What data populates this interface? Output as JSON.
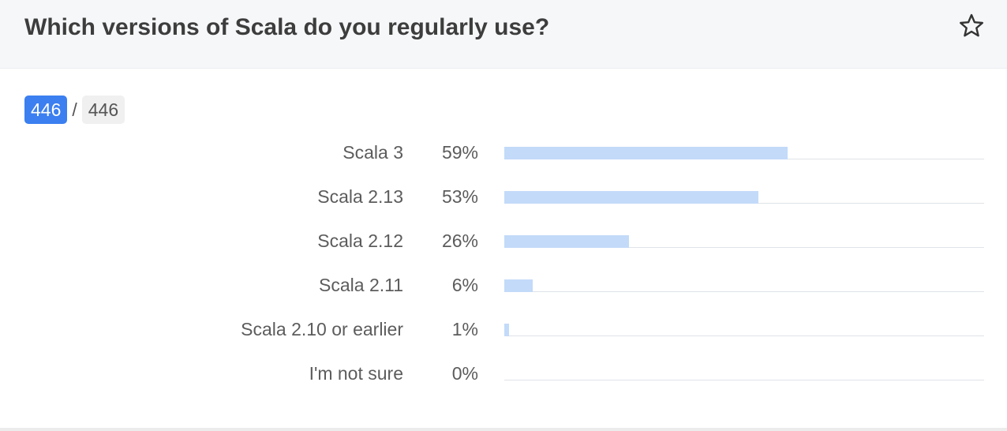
{
  "question": {
    "title": "Which versions of Scala do you regularly use?"
  },
  "icons": {
    "favorite": "star-outline-icon"
  },
  "responses": {
    "answered": "446",
    "separator": "/",
    "total": "446"
  },
  "colors": {
    "accent": "#3b7ff0",
    "bar": "#c3daf9",
    "track": "#dfe3e8",
    "header_bg": "#f6f7f9"
  },
  "chart_data": {
    "type": "bar",
    "orientation": "horizontal",
    "categories": [
      "Scala 3",
      "Scala 2.13",
      "Scala 2.12",
      "Scala 2.11",
      "Scala 2.10 or earlier",
      "I'm not sure"
    ],
    "values": [
      59,
      53,
      26,
      6,
      1,
      0
    ],
    "value_labels": [
      "59%",
      "53%",
      "26%",
      "6%",
      "1%",
      "0%"
    ],
    "unit": "%",
    "xlim": [
      0,
      100
    ],
    "grid": false,
    "legend": "none"
  }
}
